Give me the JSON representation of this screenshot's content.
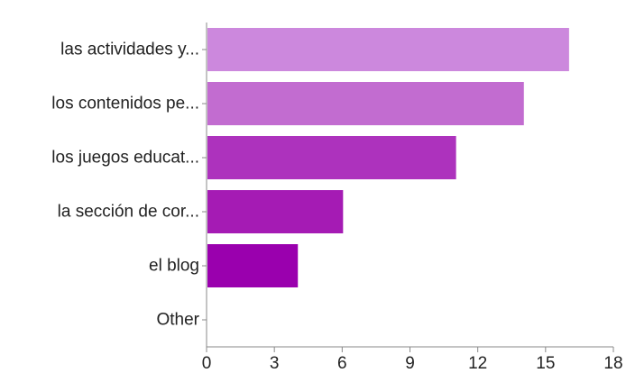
{
  "chart_data": {
    "type": "bar",
    "orientation": "horizontal",
    "categories": [
      "las actividades y...",
      "los contenidos pe...",
      "los juegos educat...",
      "la sección de cor...",
      "el blog",
      "Other"
    ],
    "values": [
      16,
      14,
      11,
      6,
      4,
      0
    ],
    "bar_colors": [
      "#cc88dd",
      "#c26cd0",
      "#ad32bd",
      "#a51bb4",
      "#9a00ae",
      "#9a00ae"
    ],
    "xlim": [
      0,
      18
    ],
    "xticks": [
      0,
      3,
      6,
      9,
      12,
      15,
      18
    ],
    "grid": false,
    "legend": "none",
    "title": "",
    "xlabel": "",
    "ylabel": ""
  },
  "colors": {
    "axis": "#888888"
  }
}
